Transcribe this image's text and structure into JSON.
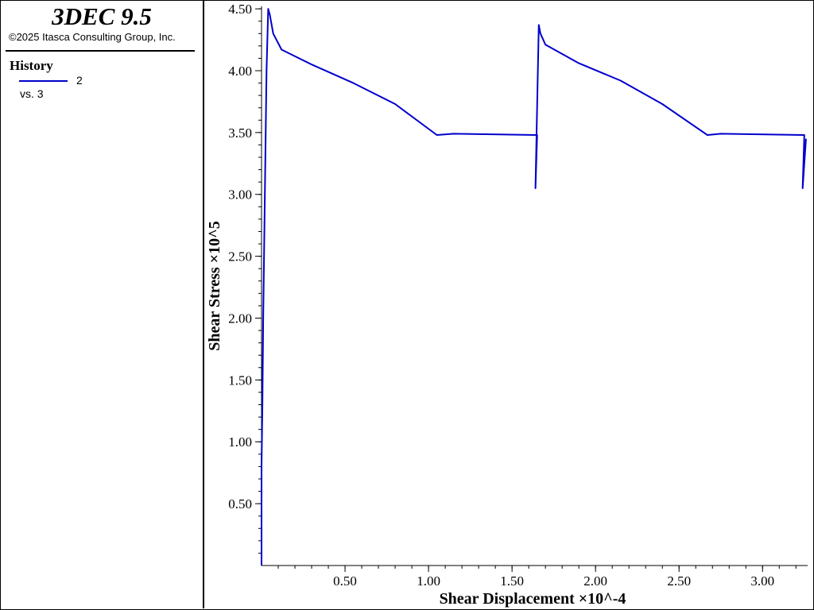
{
  "app": {
    "title": "3DEC 9.5",
    "copyright": "©2025 Itasca Consulting Group, Inc."
  },
  "legend": {
    "heading": "History",
    "series_label": "2",
    "vs_label": "vs. 3",
    "color": "#0000cc"
  },
  "chart_data": {
    "type": "line",
    "xlabel": "Shear Displacement ×10^-4",
    "ylabel": "Shear Stress ×10^5",
    "xlim": [
      0.0,
      3.27
    ],
    "ylim": [
      0.0,
      4.52
    ],
    "xticks": [
      0.5,
      1.0,
      1.5,
      2.0,
      2.5,
      3.0
    ],
    "xtick_labels": [
      "0.50",
      "1.00",
      "1.50",
      "2.00",
      "2.50",
      "3.00"
    ],
    "yticks": [
      0.5,
      1.0,
      1.5,
      2.0,
      2.5,
      3.0,
      3.5,
      4.0,
      4.5
    ],
    "ytick_labels": [
      "0.50",
      "1.00",
      "1.50",
      "2.00",
      "2.50",
      "3.00",
      "3.50",
      "4.00",
      "4.50"
    ],
    "grid": false,
    "series": [
      {
        "color": "#0000cc",
        "x": [
          0.0,
          0.0,
          0.005,
          0.01,
          0.02,
          0.03,
          0.04,
          0.05,
          0.07,
          0.12,
          0.3,
          0.55,
          0.8,
          1.05,
          1.15,
          1.65,
          1.64,
          1.66,
          1.67,
          1.7,
          1.9,
          2.15,
          2.4,
          2.67,
          2.75,
          3.25,
          3.24,
          3.26
        ],
        "y": [
          0.0,
          0.8,
          1.3,
          2.0,
          3.0,
          4.0,
          4.5,
          4.45,
          4.3,
          4.17,
          4.05,
          3.9,
          3.73,
          3.48,
          3.49,
          3.48,
          3.05,
          4.37,
          4.3,
          4.21,
          4.06,
          3.92,
          3.73,
          3.48,
          3.49,
          3.48,
          3.05,
          3.45
        ]
      }
    ]
  }
}
